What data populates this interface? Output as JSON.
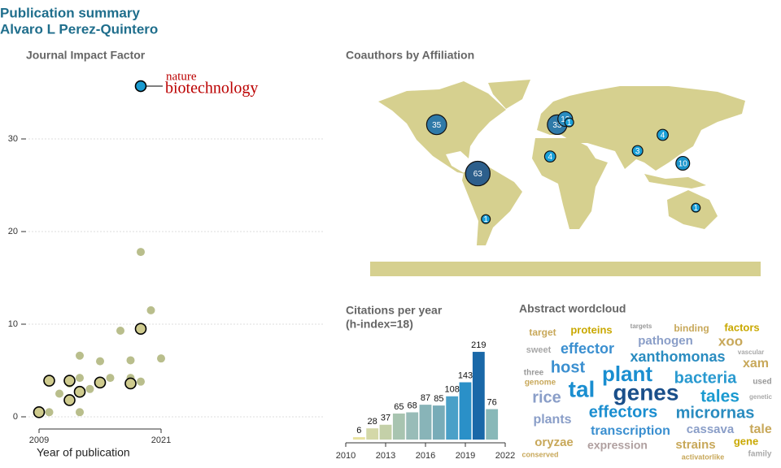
{
  "header": {
    "title": "Publication summary",
    "subtitle": "Alvaro L Perez-Quintero"
  },
  "chart_data": [
    {
      "type": "scatter",
      "title": "Journal Impact Factor",
      "x_label": "Year of publication",
      "xlim": [
        2008,
        2037
      ],
      "ylim": [
        -1.5,
        37
      ],
      "xticks": [
        2009,
        2021
      ],
      "yticks": [
        0,
        10,
        20,
        30
      ],
      "grid": true,
      "annotations": [
        "nature",
        "biotechnology"
      ],
      "series": [
        {
          "color": "#b9be8c",
          "x": [
            2010,
            2011,
            2012,
            2013,
            2013,
            2013,
            2014,
            2015,
            2016,
            2017,
            2018,
            2018,
            2019,
            2019,
            2020,
            2021
          ],
          "values": [
            0.5,
            2.5,
            3.6,
            6.6,
            0.5,
            4.2,
            3.0,
            6.0,
            4.2,
            9.3,
            6.1,
            4.2,
            17.8,
            3.8,
            11.5,
            6.3
          ]
        },
        {
          "color": "#cfcb8e",
          "outline": "#000000",
          "x": [
            2009,
            2010,
            2012,
            2012,
            2013,
            2015,
            2018,
            2019
          ],
          "values": [
            0.5,
            3.9,
            3.9,
            1.8,
            2.7,
            3.7,
            3.6,
            9.5
          ]
        },
        {
          "color": "#1a9bd0",
          "outline": "#000000",
          "x": [
            2019
          ],
          "values": [
            35.7
          ]
        }
      ]
    },
    {
      "type": "map",
      "title": "Coauthors by Affiliation",
      "values": [
        35,
        63,
        1,
        33,
        13,
        1,
        4,
        4,
        3,
        10,
        1
      ],
      "lon": [
        -112,
        -71,
        -63,
        8,
        16,
        20,
        1,
        113,
        88,
        133,
        146
      ],
      "lat": [
        49,
        6,
        -34,
        49,
        54,
        51,
        21,
        40,
        26,
        15,
        -24
      ],
      "colors": [
        "#2f7aa8",
        "#2d5f8c",
        "#1aa0d8",
        "#2f7aa8",
        "#2a8cc0",
        "#1aa0d8",
        "#1aa0d8",
        "#1aa0d8",
        "#1aa0d8",
        "#1a94cc",
        "#1aa0d8"
      ]
    },
    {
      "type": "bar",
      "title": "Citations per year",
      "subtitle": "(h-index=18)",
      "x": [
        2011,
        2012,
        2013,
        2014,
        2015,
        2016,
        2017,
        2018,
        2019,
        2020,
        2021
      ],
      "values": [
        6,
        28,
        37,
        65,
        68,
        87,
        85,
        108,
        143,
        219,
        76
      ],
      "colors": [
        "#e8e2a0",
        "#d4d8a8",
        "#c4d0a8",
        "#a8c4b0",
        "#98bcb8",
        "#88b4b8",
        "#78acb8",
        "#4aa0c8",
        "#2a90c8",
        "#1a68a8",
        "#88b8b8"
      ],
      "xlim": [
        2010,
        2022
      ],
      "xticks": [
        2010,
        2013,
        2016,
        2019,
        2022
      ],
      "ylim": [
        0,
        240
      ]
    },
    {
      "type": "wordcloud",
      "title": "Abstract wordcloud",
      "words": [
        "target",
        "proteins",
        "targets",
        "binding",
        "factors",
        "sweet",
        "effector",
        "pathogen",
        "xoo",
        "vascular",
        "three",
        "host",
        "xanthomonas",
        "xam",
        "genome",
        "plant",
        "bacteria",
        "used",
        "rice",
        "tal",
        "genes",
        "tales",
        "genetic",
        "plants",
        "effectors",
        "micrornas",
        "transcription",
        "cassava",
        "tale",
        "oryzae",
        "expression",
        "strains",
        "gene",
        "conserved",
        "activatorlike",
        "family"
      ],
      "weights": [
        12,
        13,
        8,
        12,
        13,
        11,
        18,
        15,
        17,
        8,
        10,
        20,
        18,
        16,
        10,
        26,
        20,
        10,
        20,
        28,
        28,
        21,
        8,
        16,
        20,
        20,
        16,
        15,
        16,
        15,
        14,
        15,
        13,
        9,
        9,
        10
      ],
      "colors": [
        "#c8a85a",
        "#c9a800",
        "#999999",
        "#c8a85a",
        "#c9a800",
        "#a8a8a8",
        "#3a8fd0",
        "#8a9ec8",
        "#c8a85a",
        "#a8a8a8",
        "#999999",
        "#3a8fd0",
        "#2a8cc0",
        "#c8a85a",
        "#c8a85a",
        "#1a8ed0",
        "#2a9ad0",
        "#999999",
        "#8a9ec8",
        "#1a8ed0",
        "#1a4f8a",
        "#1a9ad0",
        "#aaaaaa",
        "#8a9ec8",
        "#1a8ed0",
        "#2a8cc0",
        "#3a8fd0",
        "#8a9ec8",
        "#c8a85a",
        "#c8a85a",
        "#b0a0a0",
        "#c8a85a",
        "#c9a800",
        "#c8a85a",
        "#c8a85a",
        "#aaaaaa"
      ]
    }
  ]
}
